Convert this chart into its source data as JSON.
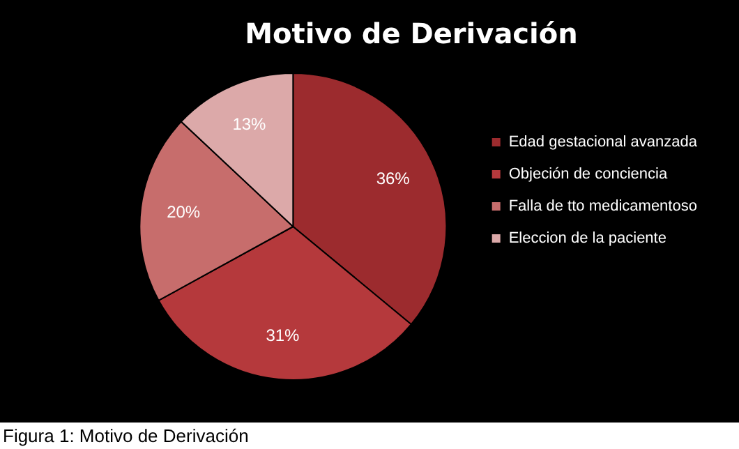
{
  "chart_data": {
    "type": "pie",
    "title": "Motivo de Derivación",
    "categories": [
      "Edad gestacional avanzada",
      "Objeción de conciencia",
      "Falla de tto medicamentoso",
      "Eleccion de la paciente"
    ],
    "values": [
      36,
      31,
      20,
      13
    ],
    "colors": [
      "#9c2b2e",
      "#b5393c",
      "#c76d6c",
      "#dca9a9"
    ],
    "value_labels": [
      "36%",
      "31%",
      "20%",
      "13%"
    ],
    "legend": "right",
    "annotations": [
      "Figura 1: Motivo de Derivación"
    ]
  }
}
